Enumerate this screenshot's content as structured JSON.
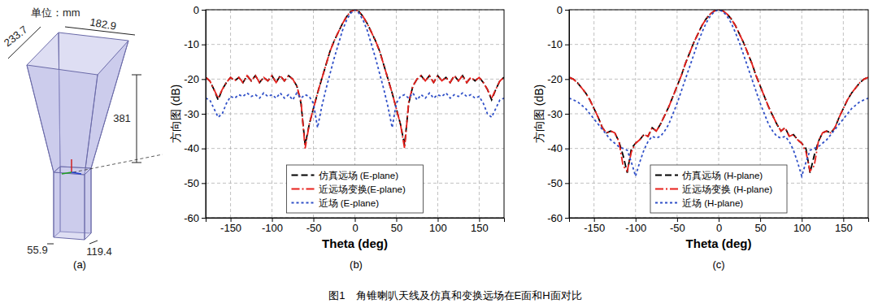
{
  "figure": {
    "caption": "图1　角锥喇叭天线及仿真和变换远场在E面和H面对比",
    "panel_labels": [
      "(a)",
      "(b)",
      "(c)"
    ],
    "antenna": {
      "unit_label": "单位：mm",
      "dimensions": [
        233.7,
        182.9,
        381,
        55.9,
        119.4
      ]
    }
  },
  "chart_data": [
    {
      "type": "line",
      "x_label": "Theta (deg)",
      "y_label": "方向图 (dB)",
      "x": [
        -180,
        -175,
        -170,
        -165,
        -160,
        -155,
        -150,
        -145,
        -140,
        -135,
        -130,
        -125,
        -120,
        -115,
        -110,
        -105,
        -100,
        -95,
        -90,
        -85,
        -80,
        -75,
        -70,
        -65,
        -60,
        -55,
        -50,
        -45,
        -40,
        -35,
        -30,
        -25,
        -20,
        -15,
        -10,
        -5,
        0,
        5,
        10,
        15,
        20,
        25,
        30,
        35,
        40,
        45,
        50,
        55,
        60,
        65,
        70,
        75,
        80,
        85,
        90,
        95,
        100,
        105,
        110,
        115,
        120,
        125,
        130,
        135,
        140,
        145,
        150,
        155,
        160,
        165,
        170,
        175,
        180
      ],
      "series": [
        {
          "name": "仿真远场 (E-plane)",
          "color": "#000000",
          "line_style": "dashed",
          "values": [
            -19.5,
            -20.5,
            -23,
            -26,
            -23,
            -21,
            -19.5,
            -20.5,
            -19.5,
            -21,
            -19,
            -20.5,
            -19,
            -21,
            -19.5,
            -20.5,
            -19,
            -21,
            -19,
            -20.5,
            -19,
            -20,
            -22,
            -27,
            -39,
            -33,
            -28.5,
            -24,
            -20,
            -16,
            -12,
            -9,
            -6.5,
            -4,
            -2,
            -0.5,
            0,
            -0.5,
            -2,
            -4,
            -6.5,
            -9,
            -12,
            -16,
            -20,
            -24,
            -28.5,
            -33,
            -39,
            -27,
            -22,
            -20,
            -19,
            -20.5,
            -19,
            -21,
            -19,
            -20.5,
            -19.5,
            -21,
            -19,
            -20.5,
            -19,
            -21,
            -19.5,
            -20.5,
            -19.5,
            -21,
            -23,
            -26,
            -23,
            -20.5,
            -19.5
          ]
        },
        {
          "name": "近远场变换(E-plane)",
          "color": "#e8201c",
          "line_style": "dashdot",
          "values": [
            -19.5,
            -20.5,
            -23,
            -25.5,
            -23,
            -21,
            -19.5,
            -20.5,
            -19.5,
            -21,
            -19,
            -20.5,
            -19,
            -21,
            -19.5,
            -20.5,
            -19,
            -21,
            -19,
            -20.5,
            -19,
            -20,
            -22,
            -26.5,
            -40,
            -33,
            -28.5,
            -24,
            -20,
            -16,
            -12,
            -9,
            -6.5,
            -4,
            -2,
            -0.5,
            0,
            -0.5,
            -2,
            -4,
            -6.5,
            -9,
            -12,
            -16,
            -20,
            -24,
            -28.5,
            -33,
            -40,
            -26.5,
            -22,
            -20,
            -19,
            -20.5,
            -19,
            -21,
            -19,
            -20.5,
            -19.5,
            -21,
            -19,
            -20.5,
            -19,
            -21,
            -19.5,
            -20.5,
            -19.5,
            -21,
            -23,
            -25.5,
            -23,
            -20.5,
            -19.5
          ]
        },
        {
          "name": "近场 (E-plane)",
          "color": "#3050c8",
          "line_style": "dotted",
          "values": [
            -25.5,
            -26,
            -28.5,
            -31,
            -30,
            -27,
            -25,
            -25.5,
            -24.5,
            -25,
            -24,
            -25,
            -24.5,
            -25.5,
            -24,
            -25,
            -24.5,
            -25.5,
            -24,
            -25.5,
            -24.5,
            -26,
            -24,
            -25.5,
            -24.5,
            -25,
            -27,
            -34,
            -28,
            -23,
            -18.5,
            -14,
            -10,
            -6,
            -3,
            -1,
            0,
            -1,
            -3,
            -6,
            -10,
            -14,
            -18.5,
            -23,
            -28,
            -34,
            -27,
            -25,
            -24.5,
            -25.5,
            -24,
            -26,
            -24.5,
            -25.5,
            -24,
            -25.5,
            -24.5,
            -25,
            -24,
            -25.5,
            -24.5,
            -25,
            -24,
            -25,
            -24.5,
            -25.5,
            -25,
            -27,
            -30,
            -31,
            -28.5,
            -26,
            -25.5
          ]
        }
      ],
      "xlim": [
        -180,
        180
      ],
      "xticks": [
        -150,
        -100,
        -50,
        0,
        50,
        100,
        150
      ],
      "ylim": [
        -60,
        0
      ],
      "yticks": [
        -60,
        -50,
        -40,
        -30,
        -20,
        -10,
        0
      ],
      "grid": true,
      "legend": "lower center"
    },
    {
      "type": "line",
      "x_label": "Theta (deg)",
      "y_label": "方向图 (dB)",
      "x": [
        -180,
        -175,
        -170,
        -165,
        -160,
        -155,
        -150,
        -145,
        -140,
        -135,
        -130,
        -125,
        -120,
        -115,
        -110,
        -105,
        -100,
        -95,
        -90,
        -85,
        -80,
        -75,
        -70,
        -65,
        -60,
        -55,
        -50,
        -45,
        -40,
        -35,
        -30,
        -25,
        -20,
        -15,
        -10,
        -5,
        0,
        5,
        10,
        15,
        20,
        25,
        30,
        35,
        40,
        45,
        50,
        55,
        60,
        65,
        70,
        75,
        80,
        85,
        90,
        95,
        100,
        105,
        110,
        115,
        120,
        125,
        130,
        135,
        140,
        145,
        150,
        155,
        160,
        165,
        170,
        175,
        180
      ],
      "series": [
        {
          "name": "仿真远场 (H-plane)",
          "color": "#000000",
          "line_style": "dashed",
          "values": [
            -19.5,
            -20,
            -21,
            -22.5,
            -24,
            -26,
            -28.5,
            -31,
            -34,
            -35.5,
            -35,
            -35.5,
            -38,
            -42,
            -47,
            -40,
            -38.5,
            -37.5,
            -36,
            -36.5,
            -34,
            -35,
            -33,
            -30.5,
            -28,
            -25,
            -22,
            -19,
            -15.5,
            -12.5,
            -9.5,
            -7,
            -4.5,
            -2.6,
            -1.2,
            -0.3,
            0,
            -0.3,
            -1.2,
            -2.6,
            -4.5,
            -7,
            -9.5,
            -12.5,
            -15.5,
            -19,
            -22,
            -25,
            -28,
            -30.5,
            -33,
            -35,
            -34,
            -36.5,
            -36,
            -37.5,
            -38.5,
            -40,
            -47,
            -42,
            -38,
            -35.5,
            -35,
            -35.5,
            -34,
            -31,
            -28.5,
            -26,
            -24,
            -22.5,
            -21,
            -20,
            -19.5
          ]
        },
        {
          "name": "近远场变换 (H-plane)",
          "color": "#e8201c",
          "line_style": "dashdot",
          "values": [
            -19.5,
            -20,
            -21,
            -22.5,
            -24,
            -26,
            -28.5,
            -31,
            -34,
            -35.5,
            -35,
            -35.5,
            -38,
            -45,
            -46.5,
            -41,
            -38.5,
            -37.5,
            -36,
            -36.5,
            -34,
            -35,
            -33,
            -30.5,
            -28,
            -25,
            -22,
            -19,
            -15.5,
            -12.5,
            -9.5,
            -7,
            -4.5,
            -2.6,
            -1.2,
            -0.3,
            0,
            -0.3,
            -1.2,
            -2.6,
            -4.5,
            -7,
            -9.5,
            -12.5,
            -15.5,
            -19,
            -22,
            -25,
            -28,
            -30.5,
            -33,
            -35,
            -34,
            -36.5,
            -36,
            -37.5,
            -38.5,
            -41,
            -46.5,
            -45,
            -38,
            -35.5,
            -35,
            -35.5,
            -34,
            -31,
            -28.5,
            -26,
            -24,
            -22.5,
            -21,
            -20,
            -19.5
          ]
        },
        {
          "name": "近场 (H-plane)",
          "color": "#3050c8",
          "line_style": "dotted",
          "values": [
            -25.5,
            -26,
            -26.5,
            -27.5,
            -28.5,
            -30,
            -31.5,
            -33,
            -34.5,
            -36,
            -37.5,
            -38.5,
            -39.5,
            -40,
            -40.5,
            -44,
            -48,
            -44,
            -40.5,
            -38,
            -36.5,
            -37,
            -36.5,
            -35,
            -33,
            -30,
            -27,
            -23.5,
            -20,
            -16.5,
            -13,
            -9.5,
            -6.5,
            -3.8,
            -1.8,
            -0.5,
            0,
            -0.5,
            -1.8,
            -3.8,
            -6.5,
            -9.5,
            -13,
            -16.5,
            -20,
            -23.5,
            -27,
            -30,
            -33,
            -35,
            -36.5,
            -37,
            -36.5,
            -38,
            -40.5,
            -44,
            -48,
            -44,
            -40.5,
            -40,
            -39.5,
            -38.5,
            -37.5,
            -36,
            -34.5,
            -33,
            -31.5,
            -30,
            -28.5,
            -27.5,
            -26.5,
            -26,
            -25.5
          ]
        }
      ],
      "xlim": [
        -180,
        180
      ],
      "xticks": [
        -150,
        -100,
        -50,
        0,
        50,
        100,
        150
      ],
      "ylim": [
        -60,
        0
      ],
      "yticks": [
        -60,
        -50,
        -40,
        -30,
        -20,
        -10,
        0
      ],
      "grid": true,
      "legend": "lower center"
    }
  ]
}
